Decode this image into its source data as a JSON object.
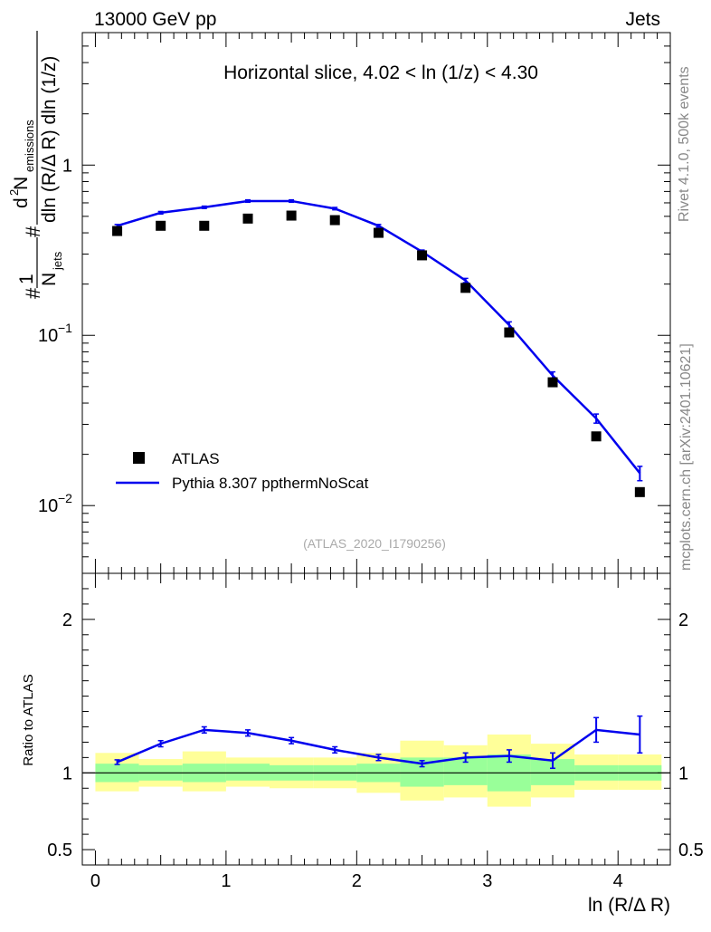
{
  "header": {
    "energy": "13000 GeV pp",
    "process": "Jets"
  },
  "side": {
    "rivet": "Rivet 4.1.0,  500k events",
    "mcplots": "mcplots.cern.ch [arXiv:2401.10621]"
  },
  "watermark": "(ATLAS_2020_I1790256)",
  "colors": {
    "mc": "#0000ee",
    "data": "#000000",
    "band_outer": "#ffff99",
    "band_inner": "#99ff99"
  },
  "chart_data": [
    {
      "type": "scatter",
      "title": "Horizontal slice, 4.02 < ln (1/z) < 4.30",
      "ylabel_parts": {
        "frac_num": "1",
        "frac_den": "N",
        "den_sub": "jets",
        "d2": "d",
        "exp2": "2",
        "n": " N",
        "n_sub": "emissions",
        "den_full": "dln (R/Δ R) dln (1/z)",
        "hash": "#"
      },
      "xlabel": "ln (R/Δ R)",
      "yscale": "log",
      "ylim": [
        0.004,
        6
      ],
      "xlim": [
        -0.1,
        4.4
      ],
      "ytick_labels": [
        "10",
        "1",
        "10",
        "10"
      ],
      "ytick_values": [
        1,
        0.1,
        0.01
      ],
      "ytick_text": {
        "one": "1",
        "base": "10",
        "e1": "−1",
        "e2": "−2"
      },
      "legend": [
        {
          "label": "ATLAS",
          "marker": "square"
        },
        {
          "label": "Pythia 8.307 ppthermNoScat",
          "marker": "line"
        }
      ],
      "series": [
        {
          "name": "ATLAS",
          "x": [
            0.167,
            0.5,
            0.833,
            1.167,
            1.5,
            1.833,
            2.167,
            2.5,
            2.833,
            3.167,
            3.5,
            3.833,
            4.167
          ],
          "y": [
            0.41,
            0.44,
            0.44,
            0.485,
            0.505,
            0.475,
            0.4,
            0.295,
            0.19,
            0.104,
            0.053,
            0.0255,
            0.012
          ]
        },
        {
          "name": "Pythia 8.307 ppthermNoScat",
          "x": [
            0.167,
            0.5,
            0.833,
            1.167,
            1.5,
            1.833,
            2.167,
            2.5,
            2.833,
            3.167,
            3.5,
            3.833,
            4.167
          ],
          "y": [
            0.44,
            0.525,
            0.565,
            0.615,
            0.615,
            0.555,
            0.44,
            0.31,
            0.21,
            0.115,
            0.058,
            0.0325,
            0.0155
          ],
          "err": [
            0.008,
            0.009,
            0.009,
            0.01,
            0.01,
            0.009,
            0.008,
            0.007,
            0.006,
            0.005,
            0.003,
            0.002,
            0.0015
          ]
        }
      ]
    },
    {
      "type": "line",
      "ylabel": "Ratio to ATLAS",
      "xlabel": "ln (R/Δ R)",
      "ylim": [
        0.4,
        2.3
      ],
      "xlim": [
        -0.1,
        4.4
      ],
      "ytick_labels": [
        "0.5",
        "1",
        "2"
      ],
      "ytick_values": [
        0.5,
        1,
        2
      ],
      "xtick_labels": [
        "0",
        "1",
        "2",
        "3",
        "4"
      ],
      "xtick_values": [
        0,
        1,
        2,
        3,
        4
      ],
      "bin_edges": [
        0,
        0.333,
        0.667,
        1.0,
        1.333,
        1.667,
        2.0,
        2.333,
        2.667,
        3.0,
        3.333,
        3.667,
        4.0,
        4.333
      ],
      "band_outer": [
        [
          0.88,
          1.13
        ],
        [
          0.91,
          1.09
        ],
        [
          0.88,
          1.14
        ],
        [
          0.91,
          1.1
        ],
        [
          0.9,
          1.1
        ],
        [
          0.9,
          1.1
        ],
        [
          0.87,
          1.13
        ],
        [
          0.82,
          1.21
        ],
        [
          0.84,
          1.18
        ],
        [
          0.78,
          1.25
        ],
        [
          0.84,
          1.19
        ],
        [
          0.89,
          1.12
        ],
        [
          0.89,
          1.12
        ]
      ],
      "band_inner": [
        [
          0.94,
          1.06
        ],
        [
          0.95,
          1.05
        ],
        [
          0.94,
          1.06
        ],
        [
          0.95,
          1.06
        ],
        [
          0.95,
          1.05
        ],
        [
          0.95,
          1.05
        ],
        [
          0.94,
          1.06
        ],
        [
          0.91,
          1.1
        ],
        [
          0.92,
          1.1
        ],
        [
          0.88,
          1.12
        ],
        [
          0.92,
          1.09
        ],
        [
          0.95,
          1.05
        ],
        [
          0.95,
          1.05
        ]
      ],
      "series": [
        {
          "name": "Pythia 8.307 ppthermNoScat",
          "x": [
            0.167,
            0.5,
            0.833,
            1.167,
            1.5,
            1.833,
            2.167,
            2.5,
            2.833,
            3.167,
            3.5,
            3.833,
            4.167
          ],
          "y": [
            1.07,
            1.19,
            1.28,
            1.26,
            1.21,
            1.15,
            1.1,
            1.06,
            1.1,
            1.11,
            1.08,
            1.28,
            1.25
          ],
          "err": [
            0.015,
            0.02,
            0.02,
            0.02,
            0.02,
            0.02,
            0.02,
            0.02,
            0.03,
            0.04,
            0.05,
            0.08,
            0.12
          ]
        }
      ]
    }
  ]
}
